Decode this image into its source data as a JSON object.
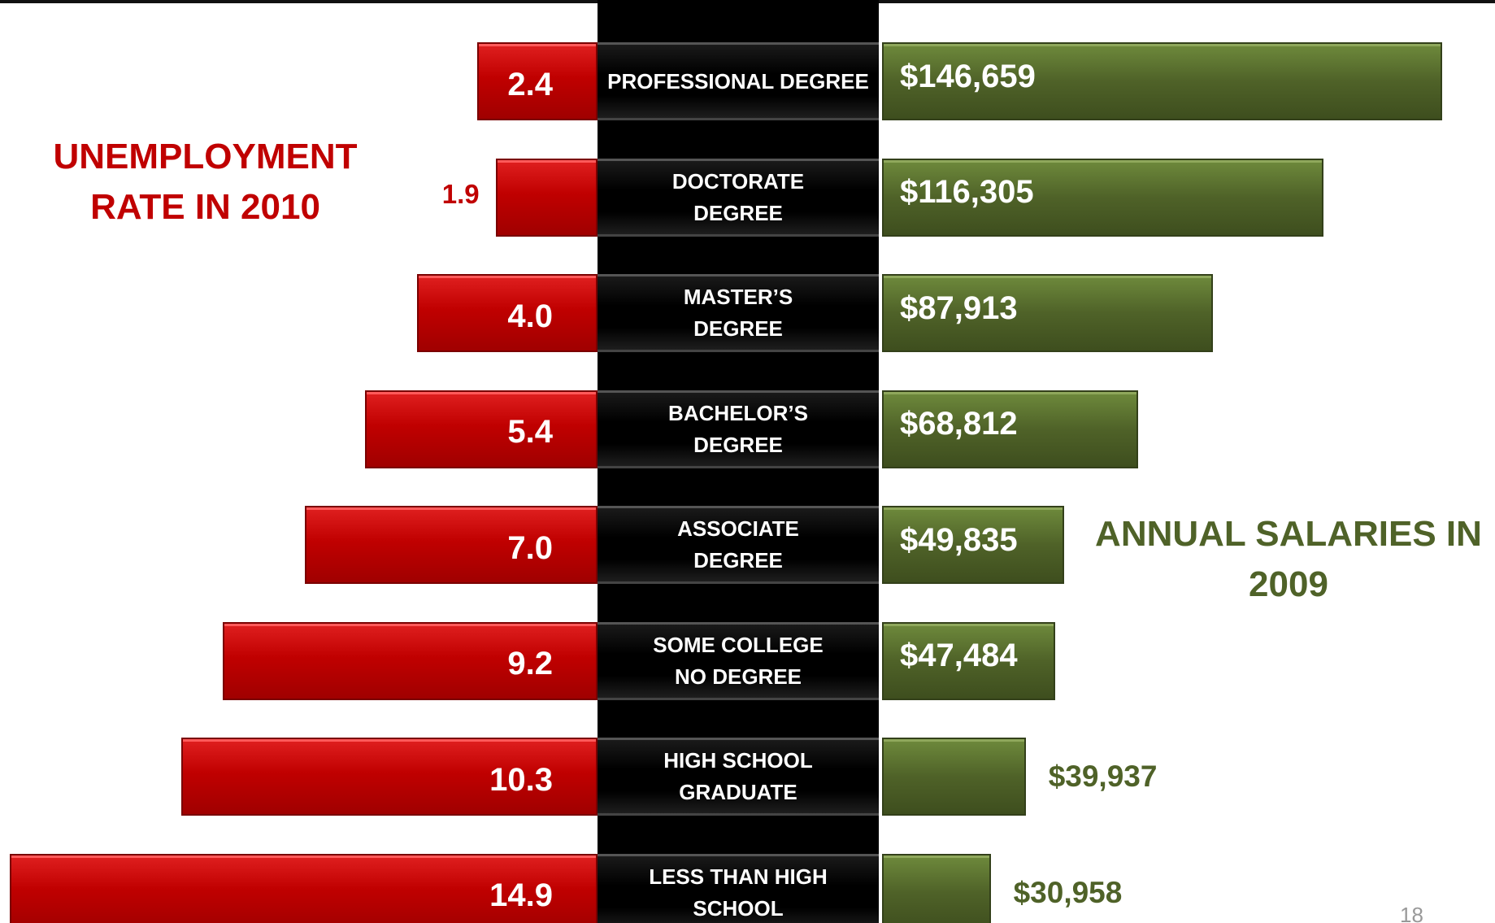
{
  "chart_data": {
    "type": "butterfly",
    "left_title": "UNEMPLOYMENT RATE IN 2010",
    "right_title": "ANNUAL SALARIES IN 2009",
    "page_number": "18",
    "categories": [
      "PROFESSIONAL DEGREE",
      "DOCTORATE\nDEGREE",
      "MASTER’S\nDEGREE",
      "BACHELOR’S\nDEGREE",
      "ASSOCIATE\nDEGREE",
      "SOME COLLEGE\nNO DEGREE",
      "HIGH SCHOOL\nGRADUATE",
      "LESS THAN HIGH\nSCHOOL"
    ],
    "series": [
      {
        "name": "UNEMPLOYMENT RATE IN 2010",
        "color": "#c00000",
        "side": "left",
        "values": [
          2.4,
          1.9,
          4.0,
          5.4,
          7.0,
          9.2,
          10.3,
          14.9
        ],
        "value_labels": [
          "2.4",
          "1.9",
          "4.0",
          "5.4",
          "7.0",
          "9.2",
          "10.3",
          "14.9"
        ]
      },
      {
        "name": "ANNUAL SALARIES IN 2009",
        "color": "#4f6228",
        "side": "right",
        "values": [
          146659,
          116305,
          87913,
          68812,
          49835,
          47484,
          39937,
          30958
        ],
        "value_labels": [
          "$146,659",
          "$116,305",
          "$87,913",
          "$68,812",
          "$49,835",
          "$47,484",
          "$39,937",
          "$30,958"
        ]
      }
    ]
  }
}
